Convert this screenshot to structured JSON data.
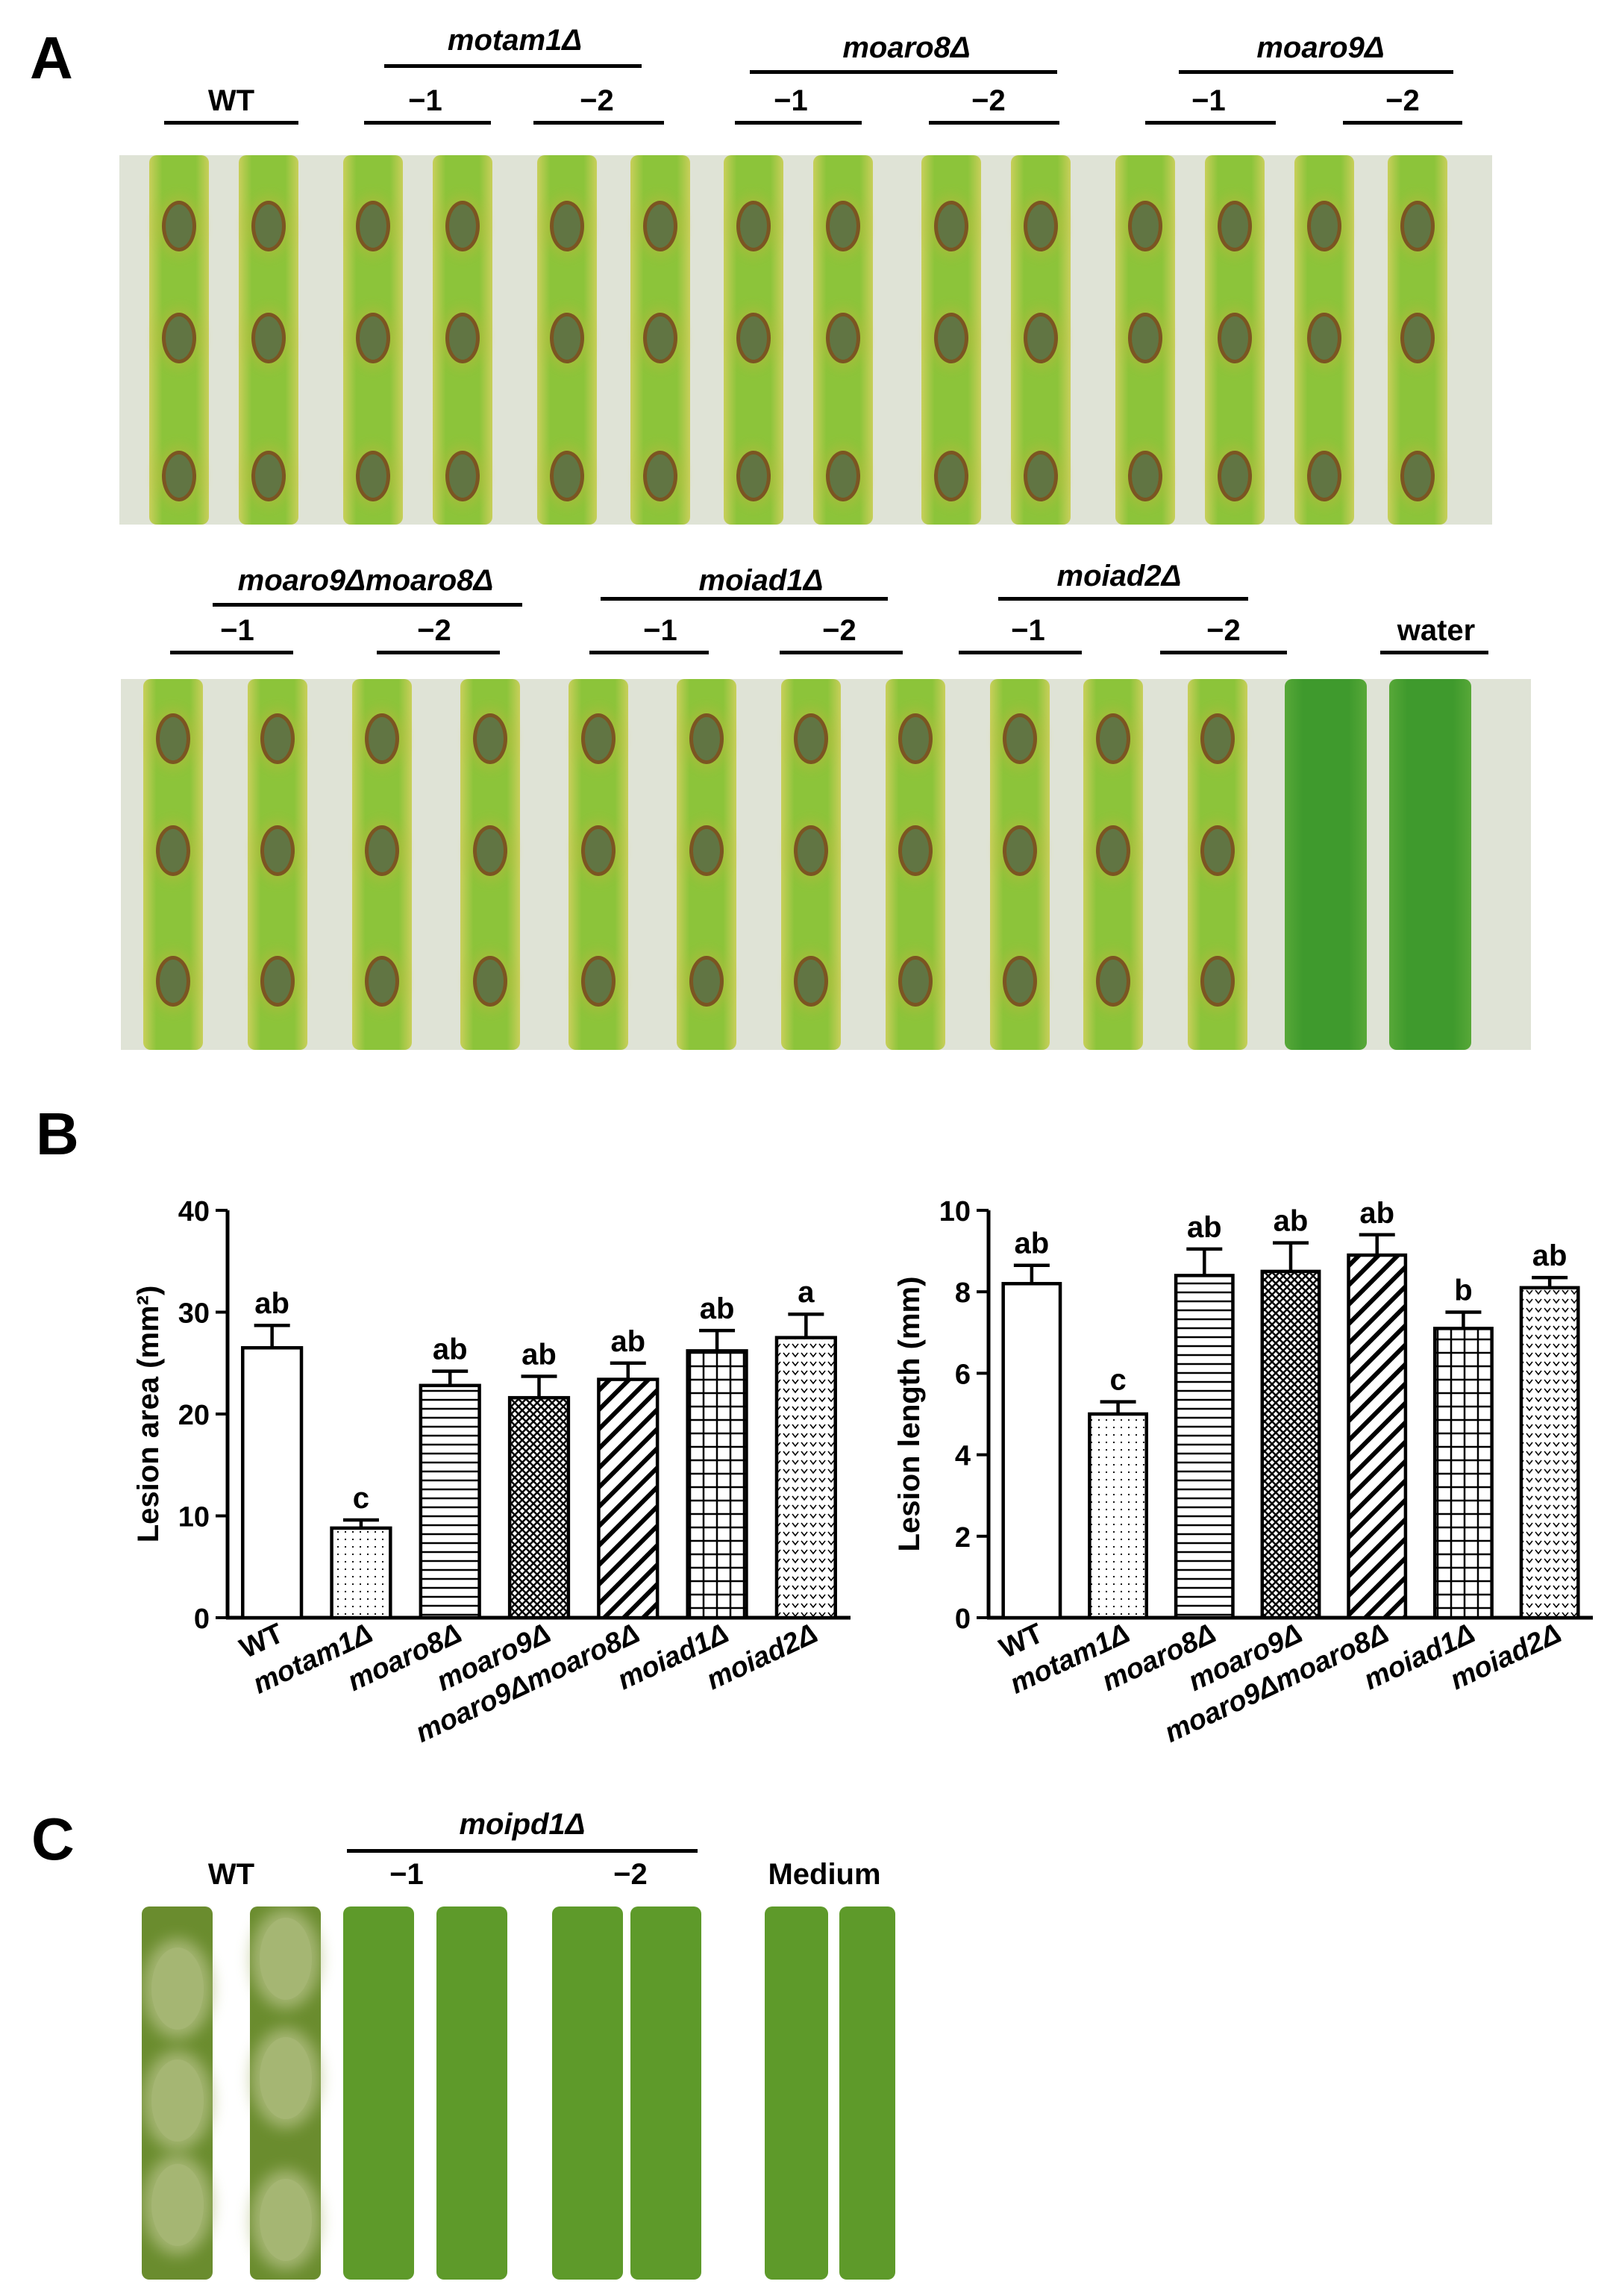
{
  "panel_letters": {
    "a": "A",
    "b": "B",
    "c": "C"
  },
  "panel_a": {
    "row1": {
      "groups": [
        {
          "name": "",
          "subs": [
            "WT"
          ]
        },
        {
          "name": "motam1Δ",
          "subs": [
            "−1",
            "−2"
          ]
        },
        {
          "name": "moaro8Δ",
          "subs": [
            "−1",
            "−2"
          ]
        },
        {
          "name": "moaro9Δ",
          "subs": [
            "−1",
            "−2"
          ]
        }
      ]
    },
    "row2": {
      "groups": [
        {
          "name": "moaro9Δmoaro8Δ",
          "subs": [
            "−1",
            "−2"
          ]
        },
        {
          "name": "moiad1Δ",
          "subs": [
            "−1",
            "−2"
          ]
        },
        {
          "name": "moiad2Δ",
          "subs": [
            "−1",
            "−2"
          ]
        },
        {
          "name": "",
          "subs": [
            "water"
          ]
        }
      ]
    },
    "colors": {
      "leaf": "#8cc43a",
      "leaf_edge": "#c8cf5a",
      "lesion": "#5d6d44",
      "lesion_ring": "#7a4a20",
      "background": "#dfe3d6"
    }
  },
  "panel_c": {
    "wt_label": "WT",
    "group_name": "moipd1Δ",
    "subs": [
      "−1",
      "−2"
    ],
    "medium_label": "Medium",
    "colors": {
      "leaf": "#5e9a2a",
      "lesion": "#b9c48a"
    }
  },
  "chart_data": [
    {
      "type": "bar",
      "categories": [
        "WT",
        "motam1Δ",
        "moaro8Δ",
        "moaro9Δ",
        "moaro9Δmoaro8Δ",
        "moiad1Δ",
        "moiad2Δ"
      ],
      "values": [
        26.5,
        8.8,
        22.8,
        21.6,
        23.4,
        26.2,
        27.5
      ],
      "errors": [
        2.2,
        0.8,
        1.4,
        2.1,
        1.6,
        2.0,
        2.3
      ],
      "annotations": [
        "ab",
        "c",
        "ab",
        "ab",
        "ab",
        "ab",
        "a"
      ],
      "ylabel": "Lesion area (mm²)",
      "ylim": [
        0,
        40
      ],
      "yticks": [
        0,
        10,
        20,
        30,
        40
      ],
      "patterns": [
        "none",
        "dots",
        "hlines",
        "crosshatch",
        "diagonal",
        "grid",
        "chevron"
      ]
    },
    {
      "type": "bar",
      "categories": [
        "WT",
        "motam1Δ",
        "moaro8Δ",
        "moaro9Δ",
        "moaro9Δmoaro8Δ",
        "moiad1Δ",
        "moiad2Δ"
      ],
      "values": [
        8.2,
        5.0,
        8.4,
        8.5,
        8.9,
        7.1,
        8.1
      ],
      "errors": [
        0.45,
        0.3,
        0.65,
        0.7,
        0.5,
        0.4,
        0.25
      ],
      "annotations": [
        "ab",
        "c",
        "ab",
        "ab",
        "ab",
        "b",
        "ab"
      ],
      "ylabel": "Lesion length (mm)",
      "ylim": [
        0,
        10
      ],
      "yticks": [
        0,
        2,
        4,
        6,
        8,
        10
      ],
      "patterns": [
        "none",
        "dots",
        "hlines",
        "crosshatch",
        "diagonal",
        "grid",
        "chevron"
      ]
    }
  ]
}
